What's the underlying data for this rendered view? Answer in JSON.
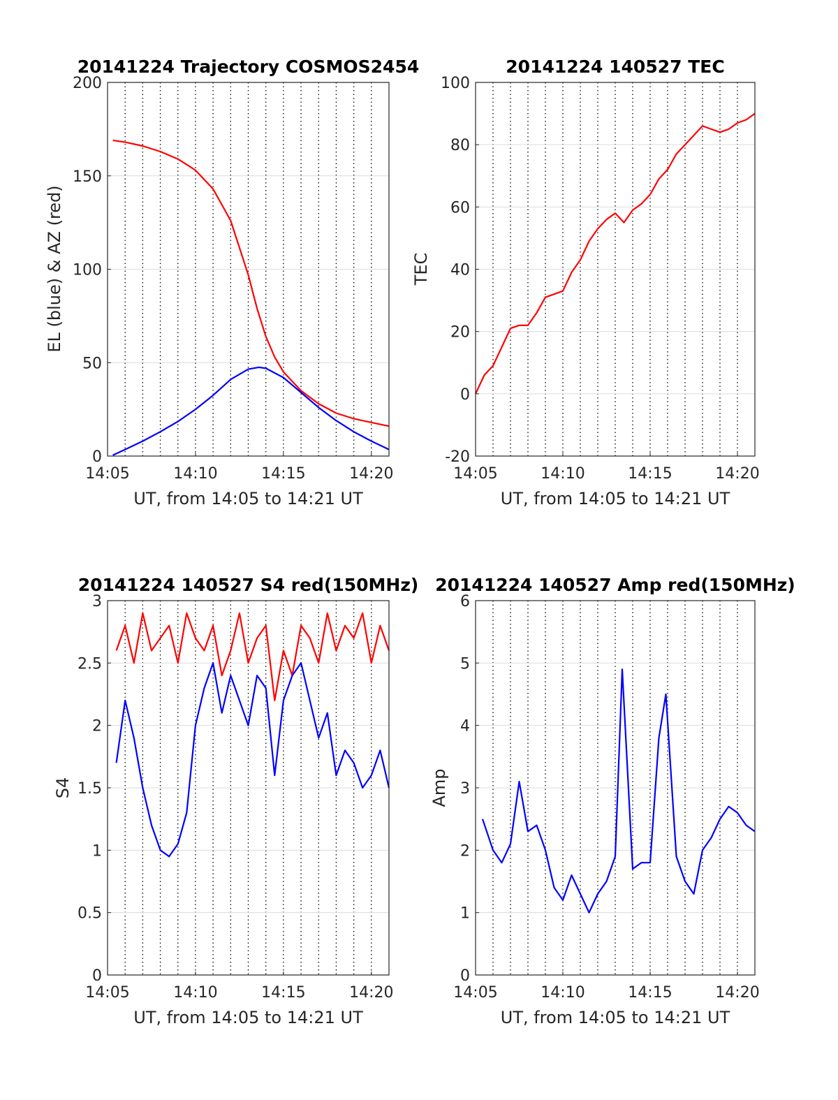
{
  "chart_data": [
    {
      "type": "line",
      "title": "20141224 Trajectory COSMOS2454",
      "xlabel": "UT, from 14:05 to 14:21 UT",
      "ylabel": "EL (blue) & AZ (red)",
      "xlim": [
        0,
        16
      ],
      "ylim": [
        0,
        200
      ],
      "x_ticks": [
        0,
        5,
        10,
        15
      ],
      "x_tick_labels": [
        "14:05",
        "14:10",
        "14:15",
        "14:20"
      ],
      "y_ticks": [
        0,
        50,
        100,
        150,
        200
      ],
      "y_tick_labels": [
        "0",
        "50",
        "100",
        "150",
        "200"
      ],
      "grid": true,
      "series": [
        {
          "color": "#ff0000",
          "x": [
            0.3,
            1,
            2,
            3,
            4,
            5,
            6,
            7,
            8,
            8.5,
            9,
            9.5,
            10,
            11,
            12,
            13,
            14,
            15,
            16
          ],
          "y": [
            169,
            168,
            166,
            163,
            159,
            153,
            143,
            126,
            97,
            79,
            64,
            53,
            45,
            35,
            28,
            23,
            20,
            18,
            16
          ]
        },
        {
          "color": "#0000ff",
          "x": [
            0.3,
            1,
            2,
            3,
            4,
            5,
            6,
            7,
            8,
            8.6,
            9,
            10,
            11,
            12,
            13,
            14,
            15,
            16
          ],
          "y": [
            0.5,
            3.5,
            8,
            13,
            18.5,
            25,
            32.5,
            41,
            46.5,
            47.5,
            47,
            42,
            34,
            26,
            19,
            13,
            8,
            3.5
          ]
        }
      ]
    },
    {
      "type": "line",
      "title": "20141224 140527 TEC",
      "xlabel": "UT, from 14:05 to 14:21 UT",
      "ylabel": "TEC",
      "xlim": [
        0,
        16
      ],
      "ylim": [
        -20,
        100
      ],
      "x_ticks": [
        0,
        5,
        10,
        15
      ],
      "x_tick_labels": [
        "14:05",
        "14:10",
        "14:15",
        "14:20"
      ],
      "y_ticks": [
        -20,
        0,
        20,
        40,
        60,
        80,
        100
      ],
      "y_tick_labels": [
        "-20",
        "0",
        "20",
        "40",
        "60",
        "80",
        "100"
      ],
      "grid": true,
      "series": [
        {
          "color": "#ff0000",
          "x": [
            0,
            0.5,
            1,
            1.5,
            2,
            2.5,
            3,
            3.5,
            4,
            4.5,
            5,
            5.5,
            6,
            6.5,
            7,
            7.5,
            8,
            8.5,
            9,
            9.5,
            10,
            10.5,
            11,
            11.5,
            12,
            12.5,
            13,
            13.5,
            14,
            14.5,
            15,
            15.5,
            16
          ],
          "y": [
            0,
            6,
            9,
            15,
            21,
            22,
            22,
            26,
            31,
            32,
            33,
            39,
            43,
            49,
            53,
            56,
            58,
            55,
            59,
            61,
            64,
            69,
            72,
            77,
            80,
            83,
            86,
            85,
            84,
            85,
            87,
            88,
            90
          ]
        }
      ]
    },
    {
      "type": "line",
      "title": "20141224 140527 S4 red(150MHz)",
      "xlabel": "UT, from 14:05 to 14:21 UT",
      "ylabel": "S4",
      "xlim": [
        0,
        16
      ],
      "ylim": [
        0,
        3
      ],
      "x_ticks": [
        0,
        5,
        10,
        15
      ],
      "x_tick_labels": [
        "14:05",
        "14:10",
        "14:15",
        "14:20"
      ],
      "y_ticks": [
        0,
        0.5,
        1,
        1.5,
        2,
        2.5,
        3
      ],
      "y_tick_labels": [
        "0",
        "0.5",
        "1",
        "1.5",
        "2",
        "2.5",
        "3"
      ],
      "grid": true,
      "series": [
        {
          "color": "#ff0000",
          "x": [
            0.5,
            1,
            1.5,
            2,
            2.5,
            3,
            3.5,
            4,
            4.5,
            5,
            5.5,
            6,
            6.5,
            7,
            7.5,
            8,
            8.5,
            9,
            9.5,
            10,
            10.5,
            11,
            11.5,
            12,
            12.5,
            13,
            13.5,
            14,
            14.5,
            15,
            15.5,
            16
          ],
          "y": [
            2.6,
            2.8,
            2.5,
            2.9,
            2.6,
            2.7,
            2.8,
            2.5,
            2.9,
            2.7,
            2.6,
            2.8,
            2.4,
            2.6,
            2.9,
            2.5,
            2.7,
            2.8,
            2.2,
            2.6,
            2.4,
            2.8,
            2.7,
            2.5,
            2.9,
            2.6,
            2.8,
            2.7,
            2.9,
            2.5,
            2.8,
            2.6
          ]
        },
        {
          "color": "#0000ff",
          "x": [
            0.5,
            1,
            1.5,
            2,
            2.5,
            3,
            3.5,
            4,
            4.5,
            5,
            5.5,
            6,
            6.5,
            7,
            7.5,
            8,
            8.5,
            9,
            9.5,
            10,
            10.5,
            11,
            11.5,
            12,
            12.5,
            13,
            13.5,
            14,
            14.5,
            15,
            15.5,
            16
          ],
          "y": [
            1.7,
            2.2,
            1.9,
            1.5,
            1.2,
            1.0,
            0.95,
            1.05,
            1.3,
            2.0,
            2.3,
            2.5,
            2.1,
            2.4,
            2.2,
            2.0,
            2.4,
            2.3,
            1.6,
            2.2,
            2.4,
            2.5,
            2.2,
            1.9,
            2.1,
            1.6,
            1.8,
            1.7,
            1.5,
            1.6,
            1.8,
            1.5
          ]
        }
      ]
    },
    {
      "type": "line",
      "title": "20141224 140527 Amp red(150MHz)",
      "xlabel": "UT, from 14:05 to 14:21 UT",
      "ylabel": "Amp",
      "xlim": [
        0,
        16
      ],
      "ylim": [
        0,
        6
      ],
      "x_ticks": [
        0,
        5,
        10,
        15
      ],
      "x_tick_labels": [
        "14:05",
        "14:10",
        "14:15",
        "14:20"
      ],
      "y_ticks": [
        0,
        1,
        2,
        3,
        4,
        5,
        6
      ],
      "y_tick_labels": [
        "0",
        "1",
        "2",
        "3",
        "4",
        "5",
        "6"
      ],
      "grid": true,
      "series": [
        {
          "color": "#0000ff",
          "x": [
            0.4,
            1,
            1.5,
            2,
            2.5,
            3,
            3.5,
            4,
            4.5,
            5,
            5.5,
            6,
            6.5,
            7,
            7.5,
            8,
            8.4,
            9,
            9.5,
            10,
            10.5,
            10.9,
            11.5,
            12,
            12.5,
            13,
            13.5,
            14,
            14.5,
            15,
            15.5,
            16
          ],
          "y": [
            2.5,
            2.0,
            1.8,
            2.1,
            3.1,
            2.3,
            2.4,
            2.0,
            1.4,
            1.2,
            1.6,
            1.3,
            1.0,
            1.3,
            1.5,
            1.9,
            4.9,
            1.7,
            1.8,
            1.8,
            3.8,
            4.5,
            1.9,
            1.5,
            1.3,
            2.0,
            2.2,
            2.5,
            2.7,
            2.6,
            2.4,
            2.3
          ]
        }
      ]
    }
  ]
}
